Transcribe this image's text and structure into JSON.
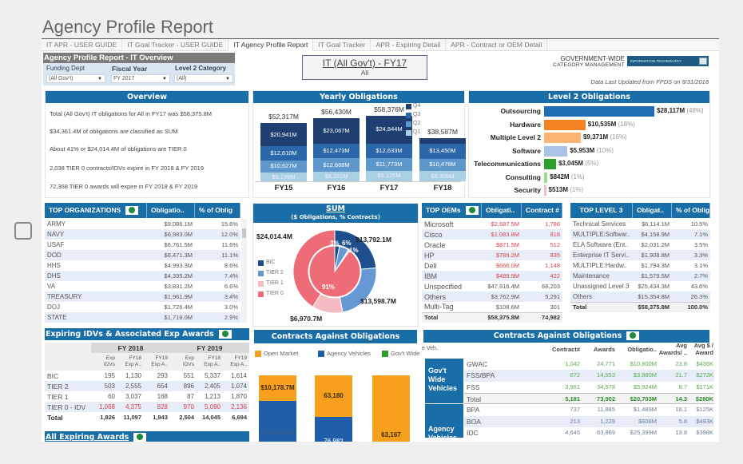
{
  "page_title": "Agency Profile Report",
  "tabs": [
    "IT APR - USER GUIDE",
    "IT Goal Tracker - USER GUIDE",
    "IT Agency Profile Report",
    "IT Goal Tracker",
    "APR - Expiring Detail",
    "APR - Contract or OEM Detail"
  ],
  "active_tab": "IT Agency Profile Report",
  "overview_header": "Agency Profile Report  - IT Overview",
  "filters": {
    "funding_dept": {
      "label": "Funding Dept",
      "value": "(All Gov't)"
    },
    "fiscal_year": {
      "label": "Fiscal Year",
      "value": "FY 2017"
    },
    "level2": {
      "label": "Level 2 Category",
      "value": "(All)"
    }
  },
  "title_box": {
    "title": "IT (All Gov't) - FY17",
    "subtitle": "All"
  },
  "branding": {
    "line1": "GOVERNMENT-WIDE",
    "line2": "CATEGORY MANAGEMENT",
    "badge": "INFORMATION TECHNOLOGY"
  },
  "updated": "Data Last Updated from FPDS on 8/31/2018",
  "overview": {
    "header": "Overview",
    "lines": [
      "Total (All Gov't) IT obligations for All in FY17 was $58,375.8M",
      "$34,361.4M of obligations are classified as SUM",
      "About 41% or $24,014.4M of obligations are TIER 0",
      "2,038 TIER 0 contracts/IDVs expire in FY 2018 & FY 2019",
      "72,368 TIER 0 awards will expire in FY 2018 & FY 2019"
    ]
  },
  "yearly": {
    "header": "Yearly Obligations",
    "legend": [
      "Q4",
      "Q3",
      "Q2",
      "Q1"
    ],
    "colors": {
      "Q4": "#1f3f73",
      "Q3": "#2b66a8",
      "Q2": "#5e97cc",
      "Q1": "#a9cfe3"
    },
    "years": [
      {
        "fy": "FY15",
        "total": "$52,317M",
        "Q4": "$20,941M",
        "Q3": "$12,610M",
        "Q2": "$10,627M",
        "Q1": "$8,139M",
        "v": [
          20941,
          12610,
          10627,
          8139
        ]
      },
      {
        "fy": "FY16",
        "total": "$56,430M",
        "Q4": "$23,067M",
        "Q3": "$12,473M",
        "Q2": "$12,668M",
        "Q1": "$8,222M",
        "v": [
          23067,
          12473,
          12668,
          8222
        ]
      },
      {
        "fy": "FY17",
        "total": "$58,376M",
        "Q4": "$24,844M",
        "Q3": "$12,633M",
        "Q2": "$11,773M",
        "Q1": "$9,126M",
        "v": [
          24844,
          12633,
          11773,
          9126
        ]
      },
      {
        "fy": "FY18",
        "total": "$38,587M",
        "Q4": "",
        "Q3": "$13,450M",
        "Q2": "$10,478M",
        "Q1": "$9,309M",
        "v": [
          5350,
          13450,
          10478,
          9309
        ]
      }
    ]
  },
  "level2": {
    "header": "Level 2 Obligations",
    "items": [
      {
        "label": "Outsourcing",
        "value": "$28,117M",
        "pct": "(48%)",
        "v": 28117,
        "color": "#1f6eb4"
      },
      {
        "label": "Hardware",
        "value": "$10,535M",
        "pct": "(18%)",
        "v": 10535,
        "color": "#f58220"
      },
      {
        "label": "Multiple Level 2",
        "value": "$9,371M",
        "pct": "(16%)",
        "v": 9371,
        "color": "#fbb474"
      },
      {
        "label": "Software",
        "value": "$5,953M",
        "pct": "(10%)",
        "v": 5953,
        "color": "#a9c3e6"
      },
      {
        "label": "Telecommunications",
        "value": "$3,045M",
        "pct": "(5%)",
        "v": 3045,
        "color": "#2ca02c"
      },
      {
        "label": "Consulting",
        "value": "$842M",
        "pct": "(1%)",
        "v": 842,
        "color": "#98df8a"
      },
      {
        "label": "Security",
        "value": "$513M",
        "pct": "(1%)",
        "v": 513,
        "color": "#f7b6d2"
      }
    ]
  },
  "top_orgs": {
    "headers": [
      "TOP ORGANIZATIONS",
      "Obligatio..",
      "% of Oblig"
    ],
    "rows": [
      [
        "ARMY",
        "$9,086.1M",
        "15.6%"
      ],
      [
        "NAVY",
        "$6,983.0M",
        "12.0%"
      ],
      [
        "USAF",
        "$6,761.5M",
        "11.6%"
      ],
      [
        "DOD",
        "$6,471.3M",
        "11.1%"
      ],
      [
        "HHS",
        "$4,993.3M",
        "8.6%"
      ],
      [
        "DHS",
        "$4,335.2M",
        "7.4%"
      ],
      [
        "VA",
        "$3,831.2M",
        "6.6%"
      ],
      [
        "TREASURY",
        "$1,961.9M",
        "3.4%"
      ],
      [
        "DOJ",
        "$1,726.4M",
        "3.0%"
      ],
      [
        "STATE",
        "$1,718.0M",
        "2.9%"
      ]
    ]
  },
  "sum": {
    "header": "SUM",
    "subheader": "($ Obligations, % Contracts)",
    "legend": [
      "BIC",
      "TIER 2",
      "TIER 1",
      "TIER 0"
    ],
    "colors": {
      "BIC": "#1f4e8c",
      "TIER 2": "#6699d3",
      "TIER 1": "#f4bcc2",
      "TIER 0": "#ee6b78"
    },
    "outer": [
      {
        "name": "BIC",
        "v": 13792.1,
        "label": "$13,792.1M"
      },
      {
        "name": "TIER 2",
        "v": 13598.7,
        "label": "$13,598.7M"
      },
      {
        "name": "TIER 1",
        "v": 6970.7,
        "label": "$6,970.7M"
      },
      {
        "name": "TIER 0",
        "v": 24014.4,
        "label": "$24,014.4M"
      }
    ],
    "inner": [
      {
        "name": "BIC",
        "v": 3,
        "label": "3%"
      },
      {
        "name": "TIER 2",
        "v": 6,
        "label": "6%"
      },
      {
        "name": "TIER 1",
        "v": 1,
        "label": "1%"
      },
      {
        "name": "TIER 0",
        "v": 91,
        "label": "91%"
      }
    ]
  },
  "oems": {
    "headers": [
      "TOP OEMs",
      "Obligati..",
      "Contract #"
    ],
    "rows": [
      [
        "Microsoft",
        "$2,687.5M",
        "1,786",
        true
      ],
      [
        "Cisco",
        "$1,083.8M",
        "818",
        true
      ],
      [
        "Oracle",
        "$871.5M",
        "512",
        true
      ],
      [
        "HP",
        "$789.2M",
        "835",
        true
      ],
      [
        "Dell",
        "$666.0M",
        "1,148",
        true
      ],
      [
        "IBM",
        "$489.9M",
        "422",
        true
      ],
      [
        "Unspecified",
        "$47,916.4M",
        "68,203",
        false
      ],
      [
        "Others",
        "$3,762.9M",
        "5,291",
        false
      ],
      [
        "Multi-Tag",
        "$108.6M",
        "301",
        false
      ]
    ],
    "total": [
      "Total",
      "$58,375.8M",
      "74,982"
    ]
  },
  "level3": {
    "headers": [
      "TOP LEVEL 3",
      "Obligat..",
      "% of Oblig"
    ],
    "rows": [
      [
        "Technical Services",
        "$6,114.1M",
        "10.5%"
      ],
      [
        "MULTIPLE:Softwar..",
        "$4,158.9M",
        "7.1%"
      ],
      [
        "ELA Software (Ent..",
        "$2,031.2M",
        "3.5%"
      ],
      [
        "Enterprise IT Servi..",
        "$1,908.8M",
        "3.3%"
      ],
      [
        "MULTIPLE:Hardw..",
        "$1,794.3M",
        "3.1%"
      ],
      [
        "Maintenance",
        "$1,579.5M",
        "2.7%"
      ],
      [
        "Unassigned Level 3",
        "$25,434.3M",
        "43.6%"
      ],
      [
        "Others",
        "$15,354.8M",
        "26.3%"
      ]
    ],
    "total": [
      "Total",
      "$58,375.8M",
      "100.0%"
    ]
  },
  "expiring": {
    "header": "Expiring IDVs & Associated Exp Awards",
    "groups": [
      "FY 2018",
      "FY 2019"
    ],
    "subcols": [
      "Exp IDVs",
      "FY18 Exp A..",
      "FY19 Exp A..",
      "Exp IDVs",
      "FY18 Exp A..",
      "FY19 Exp A.."
    ],
    "rows": [
      [
        "BIC",
        "195",
        "1,130",
        "293",
        "551",
        "5,337",
        "1,614"
      ],
      [
        "TIER 2",
        "503",
        "2,555",
        "654",
        "896",
        "2,405",
        "1,074"
      ],
      [
        "TIER 1",
        "60",
        "3,037",
        "168",
        "87",
        "1,213",
        "1,870"
      ],
      [
        "TIER 0 - IDV",
        "1,068",
        "4,375",
        "828",
        "970",
        "5,090",
        "2,136"
      ]
    ],
    "total": [
      "Total",
      "1,826",
      "11,097",
      "1,943",
      "2,504",
      "14,045",
      "6,694"
    ],
    "footer": "All Expiring Awards"
  },
  "cao_chart": {
    "header": "Contracts Against Obligations",
    "legend": [
      "Open Market",
      "Agency Vehicles",
      "Gov't Wide Veh.."
    ],
    "colors": {
      "Open Market": "#f7a01d",
      "Agency Vehicles": "#1f5ea8",
      "Gov't Wide Veh..": "#2ca02c"
    },
    "bar1": {
      "top": "$10,178.7M",
      "bottom": "$27,493.7M"
    },
    "bar2": {
      "top": "63,180",
      "bottom": "76,983"
    },
    "bar3": {
      "top": "63,167"
    }
  },
  "cao_table": {
    "header": "Contracts Against Obligations",
    "legend_trunc": "e Veh..",
    "headers": [
      "Contract#",
      "Awards",
      "Obligatio..",
      "Avg Awards/ ..",
      "Avg $ / Award"
    ],
    "groups": [
      {
        "name": "Gov't Wide Vehicles",
        "rows": [
          [
            "GWAC",
            "1,042",
            "24,771",
            "$10,800M",
            "23.8",
            "$436K"
          ],
          [
            "FSS/BPA",
            "672",
            "14,553",
            "$3,980M",
            "21.7",
            "$273K"
          ],
          [
            "FSS",
            "3,961",
            "34,578",
            "$5,924M",
            "8.7",
            "$171K"
          ]
        ],
        "total": [
          "Total",
          "5,181",
          "73,902",
          "$20,703M",
          "14.3",
          "$280K"
        ]
      },
      {
        "name": "Agency Vehicles",
        "rows": [
          [
            "BPA",
            "737",
            "11,885",
            "$1,489M",
            "16.1",
            "$125K"
          ],
          [
            "BOA",
            "213",
            "1,229",
            "$606M",
            "5.8",
            "$493K"
          ],
          [
            "IDC",
            "4,645",
            "63,869",
            "$25,399M",
            "13.8",
            "$398K"
          ]
        ]
      }
    ]
  }
}
